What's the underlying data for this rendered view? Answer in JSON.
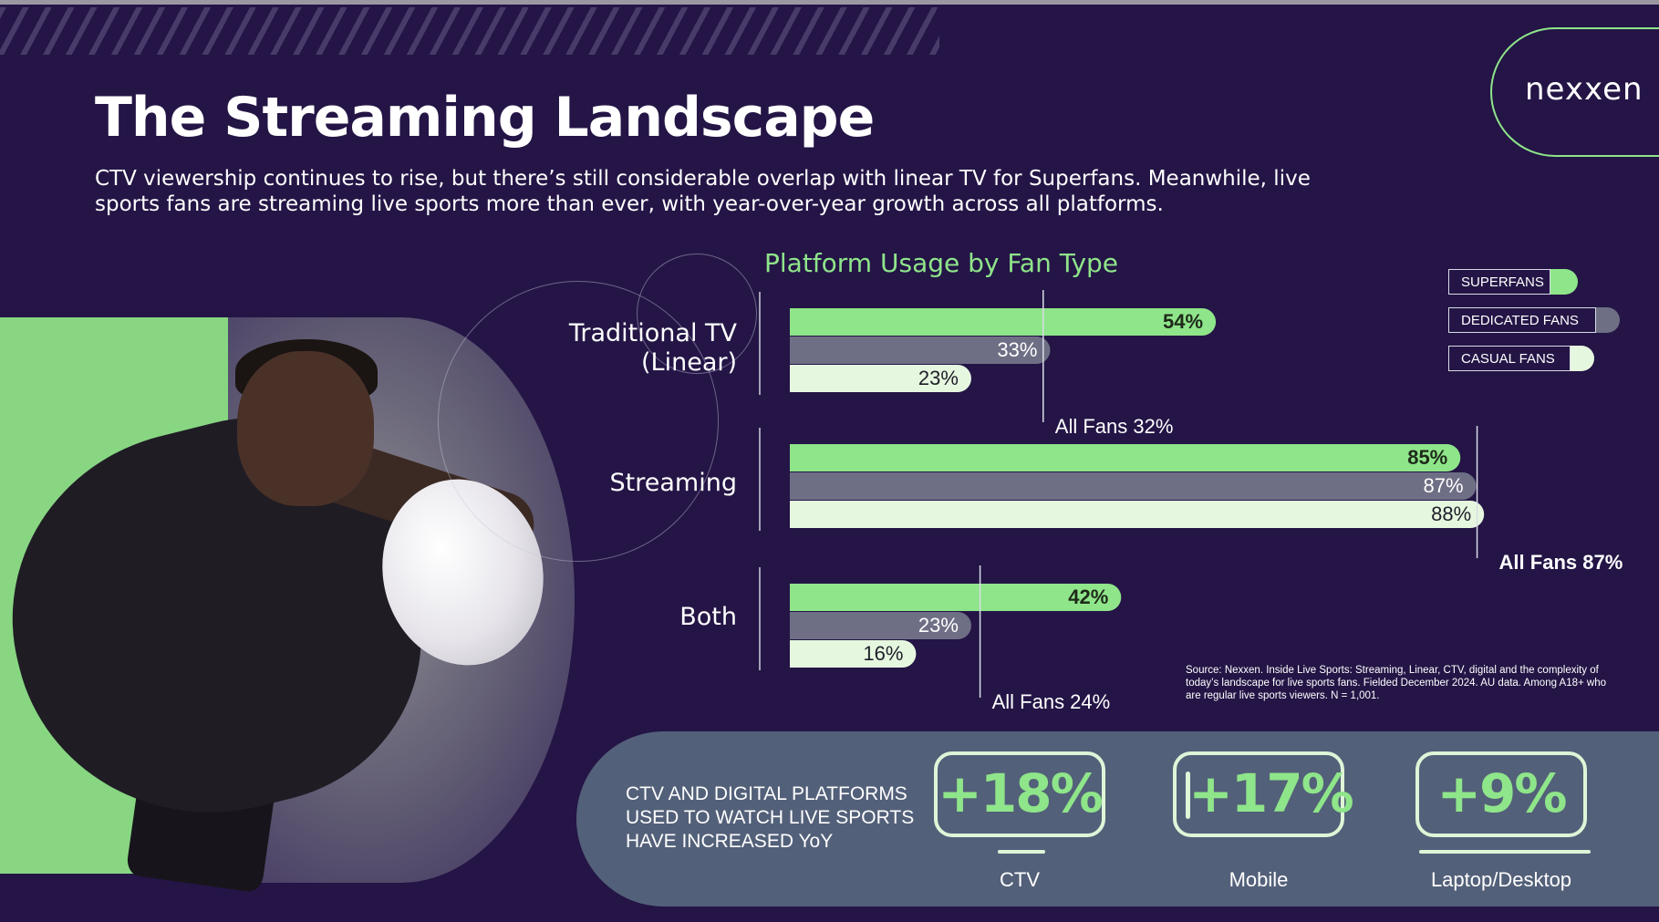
{
  "brand": {
    "logo": "nexxen",
    "accent_color": "#8fe58a",
    "background_color": "#241546"
  },
  "header": {
    "title": "The Streaming Landscape",
    "subtitle": "CTV viewership continues to rise, but there’s still considerable overlap with linear TV for Superfans. Meanwhile, live sports fans are streaming live sports more than ever, with year-over-year growth across all platforms."
  },
  "chart_data": {
    "type": "bar",
    "orientation": "horizontal",
    "title": "Platform Usage by Fan Type",
    "categories": [
      "Traditional TV\n(Linear)",
      "Streaming",
      "Both"
    ],
    "series": [
      {
        "name": "SUPERFANS",
        "values": [
          54,
          85,
          42
        ],
        "labels": [
          "54%",
          "85%",
          "42%"
        ],
        "color": "#8fe58a"
      },
      {
        "name": "DEDICATED FANS",
        "values": [
          33,
          87,
          23
        ],
        "labels": [
          "33%",
          "87%",
          "23%"
        ],
        "color": "#6e6f85"
      },
      {
        "name": "CASUAL FANS",
        "values": [
          23,
          88,
          16
        ],
        "labels": [
          "23%",
          "88%",
          "16%"
        ],
        "color": "#e6f7df"
      }
    ],
    "all_fans": {
      "values": [
        32,
        87,
        24
      ],
      "labels": [
        "All Fans 32%",
        "All Fans 87%",
        "All Fans 24%"
      ]
    },
    "xlim": [
      0,
      100
    ],
    "legend_position": "top-right",
    "grid": false
  },
  "source": "Source: Nexxen. Inside Live Sports: Streaming, Linear, CTV, digital and the complexity of today’s landscape for live sports fans. Fielded December 2024. AU data. Among A18+ who are regular live sports viewers. N = 1,001.",
  "growth_panel": {
    "text": "CTV AND DIGITAL PLATFORMS USED TO WATCH LIVE SPORTS HAVE INCREASED YoY",
    "stats": [
      {
        "value": "+18%",
        "label": "CTV",
        "icon": "tv-icon"
      },
      {
        "value": "+17%",
        "label": "Mobile",
        "icon": "mobile-icon"
      },
      {
        "value": "+9%",
        "label": "Laptop/Desktop",
        "icon": "laptop-icon"
      }
    ]
  }
}
